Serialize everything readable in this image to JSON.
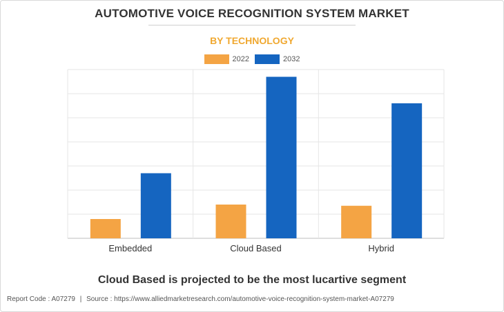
{
  "title": "AUTOMOTIVE VOICE RECOGNITION SYSTEM MARKET",
  "subtitle": "BY TECHNOLOGY",
  "caption": "Cloud Based is projected to be the most lucartive segment",
  "footer": {
    "report_code": "Report Code : A07279",
    "separator": "|",
    "source": "Source : https://www.alliedmarketresearch.com/automotive-voice-recognition-system-market-A07279"
  },
  "chart_data": {
    "type": "bar",
    "title": "AUTOMOTIVE VOICE RECOGNITION SYSTEM MARKET",
    "subtitle": "BY TECHNOLOGY",
    "categories": [
      "Embedded",
      "Cloud Based",
      "Hybrid"
    ],
    "series": [
      {
        "name": "2022",
        "color": "#f4a444",
        "values": [
          0.8,
          1.4,
          1.35
        ]
      },
      {
        "name": "2032",
        "color": "#1565c0",
        "values": [
          2.7,
          6.7,
          5.6
        ]
      }
    ],
    "ylim": [
      0,
      7
    ],
    "y_tick_labels_shown": false,
    "grid": true,
    "legend_position": "top-center"
  }
}
